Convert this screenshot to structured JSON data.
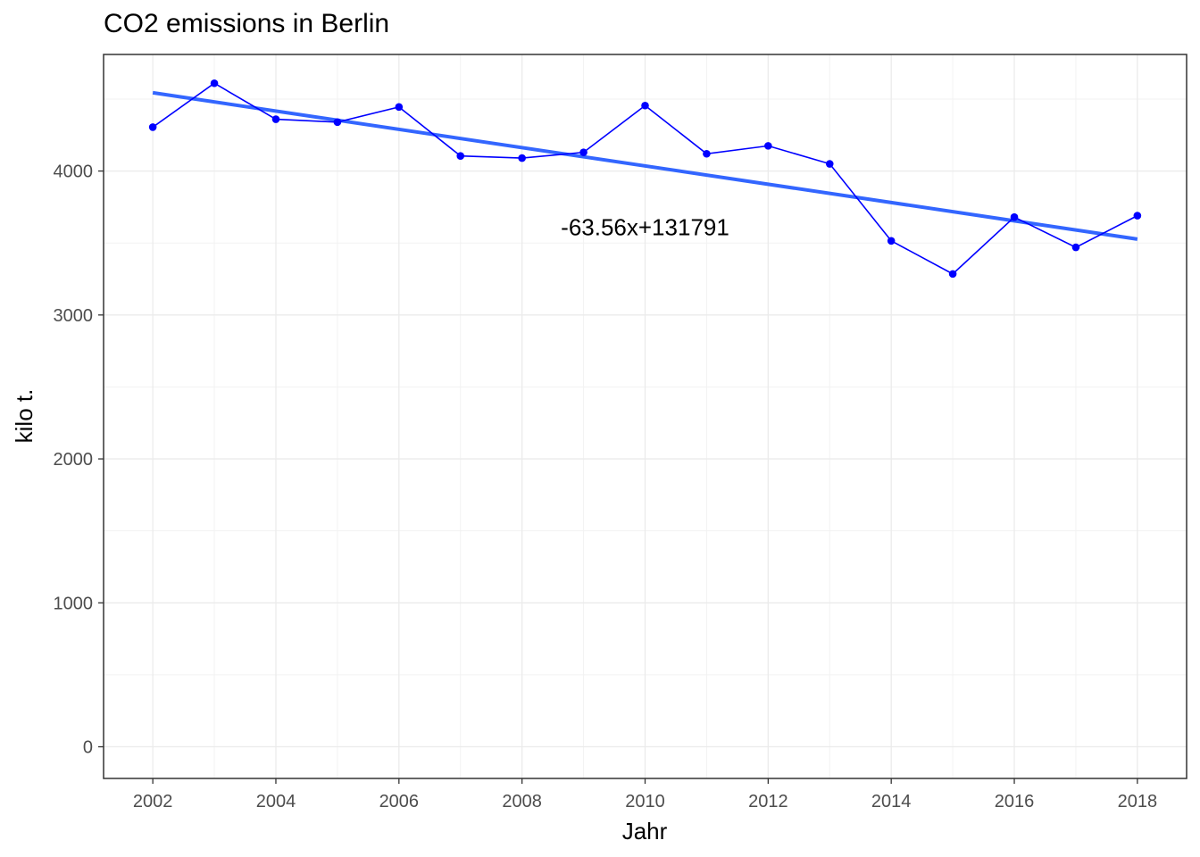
{
  "chart_data": {
    "type": "line",
    "title": "CO2 emissions in Berlin",
    "xlabel": "Jahr",
    "ylabel": "kilo t.",
    "xlim": [
      2001.2,
      2018.8
    ],
    "ylim": [
      -220,
      4810
    ],
    "x_ticks": [
      2002,
      2004,
      2006,
      2008,
      2010,
      2012,
      2014,
      2016,
      2018
    ],
    "x_tick_labels": [
      "2002",
      "2004",
      "2006",
      "2008",
      "2010",
      "2012",
      "2014",
      "2016",
      "2018"
    ],
    "y_ticks": [
      0,
      1000,
      2000,
      3000,
      4000
    ],
    "y_tick_labels": [
      "0",
      "1000",
      "2000",
      "3000",
      "4000"
    ],
    "grid": true,
    "series": [
      {
        "x": [
          2002,
          2003,
          2004,
          2005,
          2006,
          2007,
          2008,
          2009,
          2010,
          2011,
          2012,
          2013,
          2014,
          2015,
          2016,
          2017,
          2018
        ],
        "y": [
          4305,
          4610,
          4360,
          4340,
          4445,
          4105,
          4090,
          4130,
          4455,
          4120,
          4175,
          4050,
          3515,
          3285,
          3680,
          3470,
          3690
        ],
        "color": "#0000ff"
      }
    ],
    "trend_line": {
      "slope": -63.56,
      "intercept": 131791,
      "x_range": [
        2002,
        2018
      ],
      "color": "#3366ff",
      "label": "-63.56x+131791",
      "label_x": 2010,
      "label_y": 3555
    }
  }
}
